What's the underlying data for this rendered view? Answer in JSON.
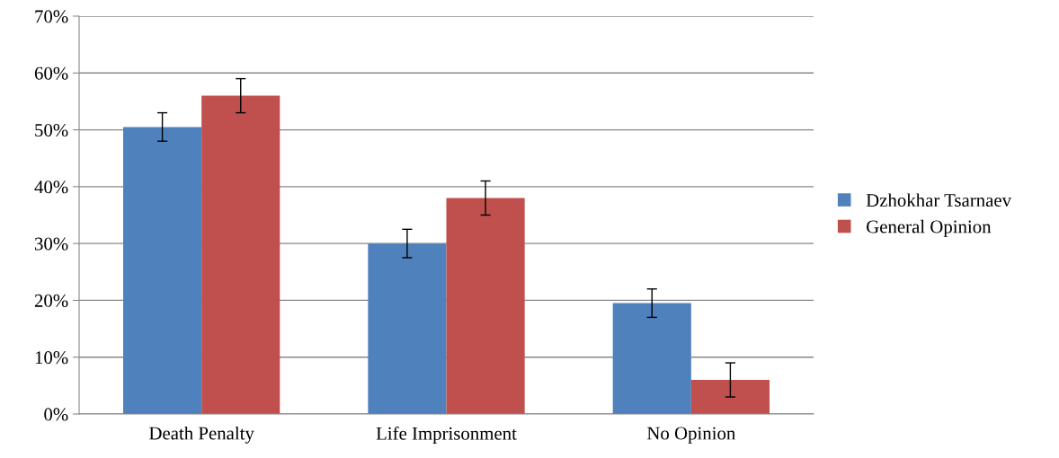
{
  "chart_data": {
    "type": "bar",
    "categories": [
      "Death Penalty",
      "Life Imprisonment",
      "No Opinion"
    ],
    "series": [
      {
        "name": "Dzhokhar Tsarnaev",
        "color": "#4f81bd",
        "values": [
          50.5,
          30,
          19.5
        ],
        "errors": [
          2.5,
          2.5,
          2.5
        ]
      },
      {
        "name": "General Opinion",
        "color": "#c0504d",
        "values": [
          56,
          38,
          6
        ],
        "errors": [
          3,
          3,
          3
        ]
      }
    ],
    "ylim": [
      0,
      70
    ],
    "yticks": [
      {
        "value": 0,
        "label": "0%"
      },
      {
        "value": 10,
        "label": "10%"
      },
      {
        "value": 20,
        "label": "20%"
      },
      {
        "value": 30,
        "label": "30%"
      },
      {
        "value": 40,
        "label": "40%"
      },
      {
        "value": 50,
        "label": "50%"
      },
      {
        "value": 60,
        "label": "60%"
      },
      {
        "value": 70,
        "label": "70%"
      }
    ],
    "grid": "y",
    "legend": "right"
  }
}
